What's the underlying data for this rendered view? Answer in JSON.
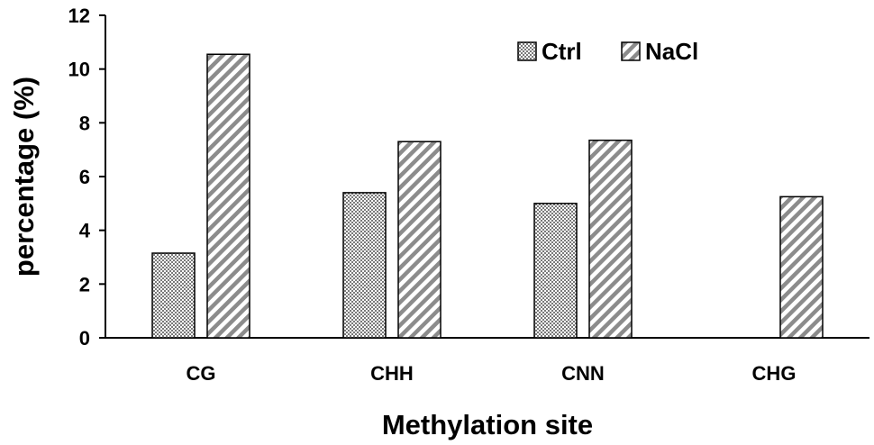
{
  "chart_data": {
    "type": "bar",
    "title": "",
    "xlabel": "Methylation site",
    "ylabel": "percentage (%)",
    "ylim": [
      0,
      12
    ],
    "yticks": [
      0,
      2,
      4,
      6,
      8,
      10,
      12
    ],
    "categories": [
      "CG",
      "CHH",
      "CNN",
      "CHG"
    ],
    "series": [
      {
        "name": "Ctrl",
        "values": [
          3.15,
          5.4,
          5.0,
          0
        ],
        "pattern": "dots"
      },
      {
        "name": "NaCl",
        "values": [
          10.55,
          7.3,
          7.35,
          5.25
        ],
        "pattern": "diagonal-stripes"
      }
    ],
    "grid": false,
    "legend_position": "top-right",
    "colors": {
      "ctrl_fill": "#8a8a8a",
      "nacl_fill": "#9a9a9a",
      "stroke": "#000000"
    }
  }
}
